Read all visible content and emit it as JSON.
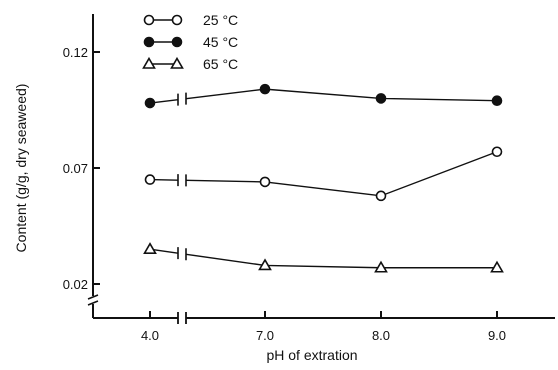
{
  "chart_data": {
    "type": "line",
    "categories": [
      "4.0",
      "7.0",
      "8.0",
      "9.0"
    ],
    "series": [
      {
        "name": "25 °C",
        "marker": "open-circle",
        "values": [
          0.065,
          0.064,
          0.058,
          0.077
        ]
      },
      {
        "name": "45 °C",
        "marker": "filled-circle",
        "values": [
          0.098,
          0.104,
          0.1,
          0.099
        ]
      },
      {
        "name": "65 °C",
        "marker": "open-triangle",
        "values": [
          0.035,
          0.028,
          0.027,
          0.027
        ]
      }
    ],
    "title": "",
    "xlabel": "pH of extration",
    "ylabel": "Content (g/g, dry seaweed)",
    "ylim": [
      0.02,
      0.13
    ],
    "yticks": [
      0.02,
      0.07,
      0.12
    ],
    "ytick_labels": [
      "0.02",
      "0.07",
      "0.12"
    ],
    "grid": false,
    "legend_position": "top-left",
    "axis_breaks": [
      "x between 4.0 and 7.0",
      "y below 0.02"
    ],
    "colors": {
      "line": "#111111",
      "background": "#ffffff"
    }
  }
}
